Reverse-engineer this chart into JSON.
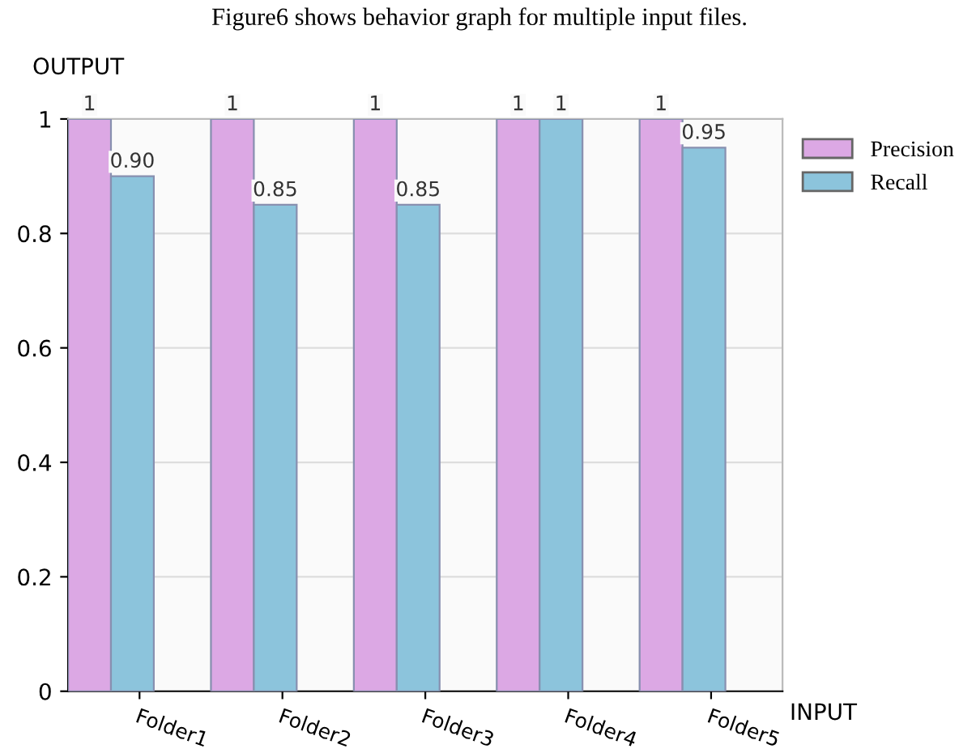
{
  "chart_data": {
    "type": "bar",
    "ylabel": "OUTPUT",
    "xlabel": "INPUT",
    "annotations": [
      "Figure6 shows behavior graph for multiple input files."
    ],
    "categories": [
      "Folder1",
      "Folder2",
      "Folder3",
      "Folder4",
      "Folder5"
    ],
    "series": [
      {
        "name": "Precision",
        "color": "#dca8e4",
        "values": [
          1,
          1,
          1,
          1,
          1
        ],
        "value_labels": [
          "1",
          "1",
          "1",
          "1",
          "1"
        ]
      },
      {
        "name": "Recall",
        "color": "#8cc4dc",
        "values": [
          0.9,
          0.85,
          0.85,
          1,
          0.95
        ],
        "value_labels": [
          "0.90",
          "0.85",
          "0.85",
          "1",
          "0.95"
        ]
      }
    ],
    "ylim": [
      0,
      1
    ],
    "yticks": [
      0,
      0.2,
      0.4,
      0.6,
      0.8,
      1
    ],
    "grid": true,
    "legend": "top right"
  }
}
